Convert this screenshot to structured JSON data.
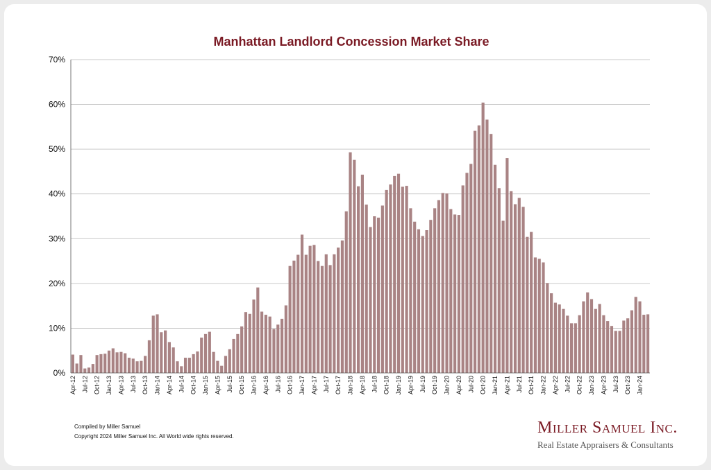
{
  "chart_data": {
    "type": "bar",
    "title": "Manhattan Landlord Concession Market Share",
    "xlabel": "",
    "ylabel": "",
    "ylim": [
      0,
      70
    ],
    "y_ticks": [
      "0%",
      "10%",
      "20%",
      "30%",
      "40%",
      "50%",
      "60%",
      "70%"
    ],
    "grid": true,
    "bar_color": "#a98384",
    "categories": [
      "Apr-12",
      "May-12",
      "Jun-12",
      "Jul-12",
      "Aug-12",
      "Sep-12",
      "Oct-12",
      "Nov-12",
      "Dec-12",
      "Jan-13",
      "Feb-13",
      "Mar-13",
      "Apr-13",
      "May-13",
      "Jun-13",
      "Jul-13",
      "Aug-13",
      "Sep-13",
      "Oct-13",
      "Nov-13",
      "Dec-13",
      "Jan-14",
      "Feb-14",
      "Mar-14",
      "Apr-14",
      "May-14",
      "Jun-14",
      "Jul-14",
      "Aug-14",
      "Sep-14",
      "Oct-14",
      "Nov-14",
      "Dec-14",
      "Jan-15",
      "Feb-15",
      "Mar-15",
      "Apr-15",
      "May-15",
      "Jun-15",
      "Jul-15",
      "Aug-15",
      "Sep-15",
      "Oct-15",
      "Nov-15",
      "Dec-15",
      "Jan-16",
      "Feb-16",
      "Mar-16",
      "Apr-16",
      "May-16",
      "Jun-16",
      "Jul-16",
      "Aug-16",
      "Sep-16",
      "Oct-16",
      "Nov-16",
      "Dec-16",
      "Jan-17",
      "Feb-17",
      "Mar-17",
      "Apr-17",
      "May-17",
      "Jun-17",
      "Jul-17",
      "Aug-17",
      "Sep-17",
      "Oct-17",
      "Nov-17",
      "Dec-17",
      "Jan-18",
      "Feb-18",
      "Mar-18",
      "Apr-18",
      "May-18",
      "Jun-18",
      "Jul-18",
      "Aug-18",
      "Sep-18",
      "Oct-18",
      "Nov-18",
      "Dec-18",
      "Jan-19",
      "Feb-19",
      "Mar-19",
      "Apr-19",
      "May-19",
      "Jun-19",
      "Jul-19",
      "Aug-19",
      "Sep-19",
      "Oct-19",
      "Nov-19",
      "Dec-19",
      "Jan-20",
      "Feb-20",
      "Mar-20",
      "Apr-20",
      "May-20",
      "Jun-20",
      "Jul-20",
      "Aug-20",
      "Sep-20",
      "Oct-20",
      "Nov-20",
      "Dec-20",
      "Jan-21",
      "Feb-21",
      "Mar-21",
      "Apr-21",
      "May-21",
      "Jun-21",
      "Jul-21",
      "Aug-21",
      "Sep-21",
      "Oct-21",
      "Nov-21",
      "Dec-21",
      "Jan-22",
      "Feb-22",
      "Mar-22",
      "Apr-22",
      "May-22",
      "Jun-22",
      "Jul-22",
      "Aug-22",
      "Sep-22",
      "Oct-22",
      "Nov-22",
      "Dec-22",
      "Jan-23",
      "Feb-23",
      "Mar-23",
      "Apr-23",
      "May-23",
      "Jun-23",
      "Jul-23",
      "Aug-23",
      "Sep-23",
      "Oct-23",
      "Nov-23",
      "Dec-23",
      "Jan-24",
      "Feb-24",
      "Mar-24"
    ],
    "values": [
      4.1,
      2.1,
      4.0,
      1.0,
      1.2,
      2.0,
      4.0,
      4.2,
      4.3,
      5.0,
      5.5,
      4.6,
      4.7,
      4.4,
      3.4,
      3.2,
      2.6,
      2.7,
      3.8,
      7.3,
      12.8,
      13.1,
      9.1,
      9.5,
      6.9,
      5.7,
      2.6,
      1.5,
      3.4,
      3.4,
      4.2,
      4.8,
      7.9,
      8.7,
      9.2,
      4.7,
      2.7,
      1.6,
      3.8,
      5.3,
      7.6,
      8.7,
      10.4,
      13.6,
      13.2,
      16.4,
      19.1,
      13.7,
      13.0,
      12.6,
      9.8,
      10.8,
      12.1,
      15.1,
      23.9,
      25.1,
      26.4,
      30.9,
      26.4,
      28.4,
      28.6,
      25.0,
      23.9,
      26.5,
      24.1,
      26.5,
      28.0,
      29.6,
      36.1,
      49.3,
      47.6,
      41.7,
      44.3,
      37.6,
      32.6,
      35.0,
      34.7,
      37.4,
      40.9,
      42.1,
      44.0,
      44.5,
      41.6,
      41.8,
      36.8,
      33.8,
      32.1,
      30.6,
      31.9,
      34.2,
      36.8,
      38.6,
      40.2,
      40.1,
      36.6,
      35.4,
      35.3,
      41.9,
      44.7,
      46.7,
      54.1,
      55.3,
      60.4,
      56.6,
      53.4,
      46.5,
      41.3,
      34.0,
      48.0,
      40.6,
      37.7,
      39.1,
      37.1,
      30.4,
      31.5,
      25.8,
      25.5,
      24.7,
      20.1,
      17.8,
      15.7,
      15.3,
      14.3,
      12.8,
      11.1,
      11.1,
      12.9,
      16.0,
      18.0,
      16.5,
      14.3,
      15.4,
      12.9,
      11.6,
      10.5,
      9.4,
      9.4,
      11.7,
      12.2,
      14.0,
      17.0,
      16.0,
      13.0,
      13.1
    ]
  },
  "footer": {
    "compiled": "Compiled by Miller Samuel",
    "copyright": "Copyright 2024 Miller Samuel Inc.  All World wide rights reserved."
  },
  "brand": {
    "name": "Miller Samuel Inc.",
    "tagline": "Real Estate Appraisers & Consultants"
  }
}
